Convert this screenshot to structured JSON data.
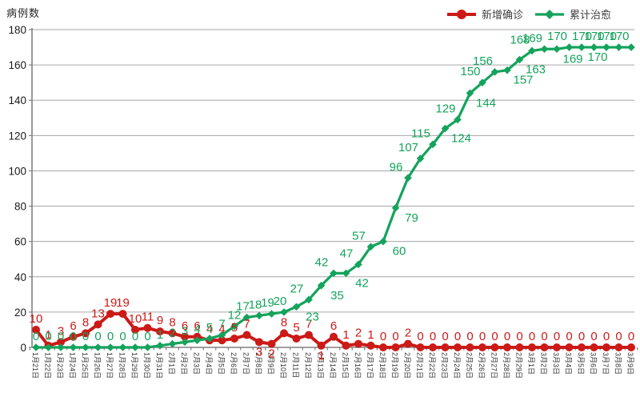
{
  "chart_data": {
    "type": "line",
    "title": "",
    "ylabel": "病例数",
    "xlabel": "",
    "ylim": [
      0,
      180
    ],
    "ytick_step": 20,
    "grid": true,
    "legend_position": "top-right",
    "categories": [
      "1月21日",
      "1月22日",
      "1月23日",
      "1月24日",
      "1月25日",
      "1月26日",
      "1月27日",
      "1月28日",
      "1月29日",
      "1月30日",
      "1月31日",
      "2月1日",
      "2月2日",
      "2月3日",
      "2月4日",
      "2月5日",
      "2月6日",
      "2月7日",
      "2月8日",
      "2月9日",
      "2月10日",
      "2月11日",
      "2月12日",
      "2月13日",
      "2月14日",
      "2月15日",
      "2月16日",
      "2月17日",
      "2月18日",
      "2月19日",
      "2月20日",
      "2月21日",
      "2月22日",
      "2月23日",
      "2月24日",
      "2月25日",
      "2月26日",
      "2月27日",
      "2月28日",
      "2月29日",
      "3月1日",
      "3月2日",
      "3月3日",
      "3月4日",
      "3月5日",
      "3月6日",
      "3月7日",
      "3月8日",
      "3月9日"
    ],
    "series": [
      {
        "name": "新增确诊",
        "color": "#cb1a17",
        "marker": "circle",
        "values": [
          10,
          1,
          3,
          6,
          8,
          13,
          19,
          19,
          10,
          11,
          9,
          8,
          6,
          6,
          4,
          4,
          5,
          7,
          3,
          2,
          8,
          5,
          7,
          1,
          6,
          1,
          2,
          1,
          0,
          0,
          2,
          0,
          0,
          0,
          0,
          0,
          0,
          0,
          0,
          0,
          0,
          0,
          0,
          0,
          0,
          0,
          0,
          0,
          0
        ],
        "labels_below_indices": [
          18,
          19,
          23
        ]
      },
      {
        "name": "累计治愈",
        "color": "#14a35c",
        "marker": "diamond",
        "values": [
          0,
          0,
          0,
          0,
          0,
          0,
          0,
          0,
          0,
          0,
          1,
          2,
          3,
          4,
          5,
          7,
          12,
          17,
          18,
          19,
          20,
          23,
          27,
          35,
          42,
          42,
          47,
          57,
          60,
          79,
          96,
          107,
          115,
          124,
          129,
          144,
          150,
          156,
          157,
          163,
          168,
          169,
          169,
          170,
          170,
          170,
          170,
          170,
          170
        ],
        "labels_below_indices": [
          21,
          23,
          25,
          28,
          29,
          33,
          35,
          38,
          39,
          42,
          44
        ]
      }
    ],
    "axis_color": "#808080",
    "grid_color": "#a6a6a6",
    "tick_label_color": "#1a1a1a",
    "x_label_color": "#333333"
  }
}
